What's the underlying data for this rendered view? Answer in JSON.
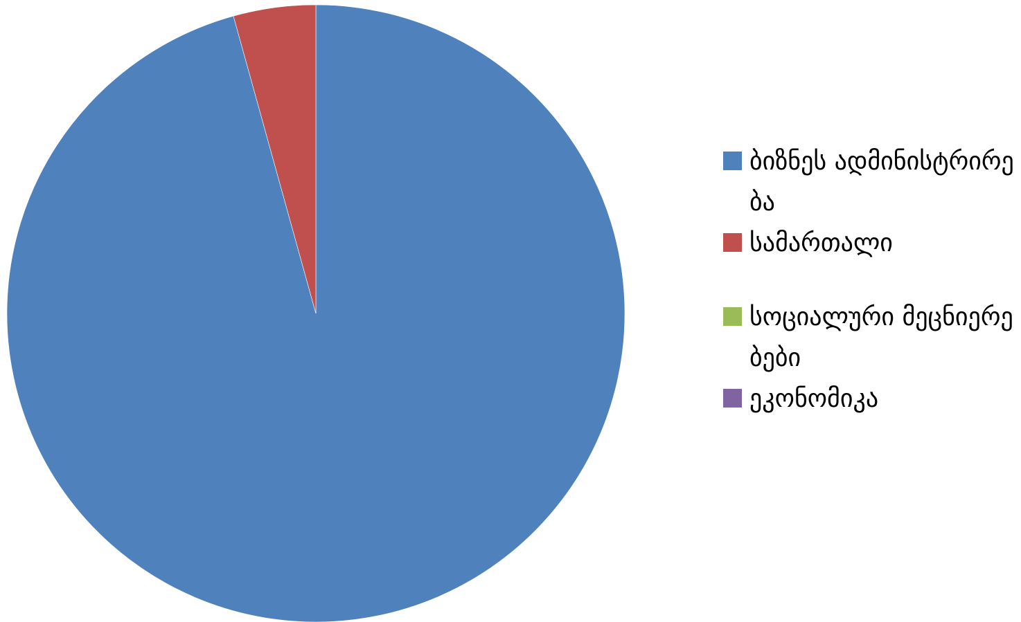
{
  "chart_data": {
    "type": "pie",
    "title": "",
    "legend_position": "right",
    "start_angle_deg": 0,
    "direction": "clockwise",
    "slices": [
      {
        "label": "ბიზნეს ადმინისტრირება",
        "value": 95.7,
        "color": "#4F81BD"
      },
      {
        "label": "სამართალი",
        "value": 4.3,
        "color": "#C0504D"
      },
      {
        "label": "სოციალური მეცნიერებები",
        "value": 0,
        "color": "#9BBB59"
      },
      {
        "label": "ეკონომიკა",
        "value": 0,
        "color": "#8064A2"
      }
    ]
  }
}
